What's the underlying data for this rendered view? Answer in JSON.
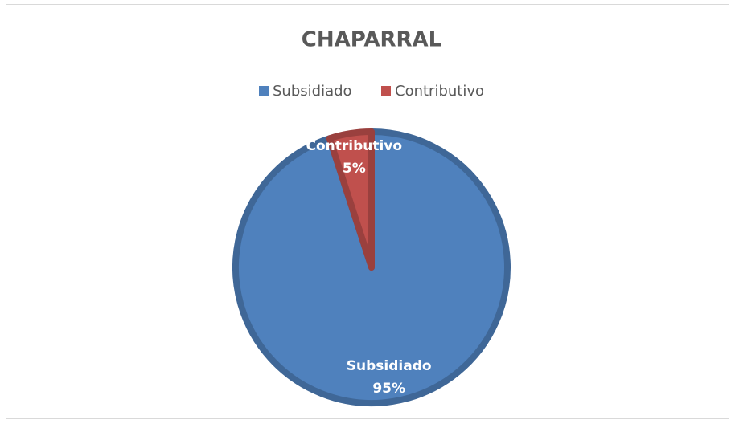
{
  "chart_data": {
    "type": "pie",
    "title": "CHAPARRAL",
    "categories": [
      "Subsidiado",
      "Contributivo"
    ],
    "values": [
      95,
      5
    ],
    "value_labels": [
      "95%",
      "5%"
    ],
    "colors": [
      "#4f81bd",
      "#c0504d"
    ],
    "legend": "top"
  }
}
